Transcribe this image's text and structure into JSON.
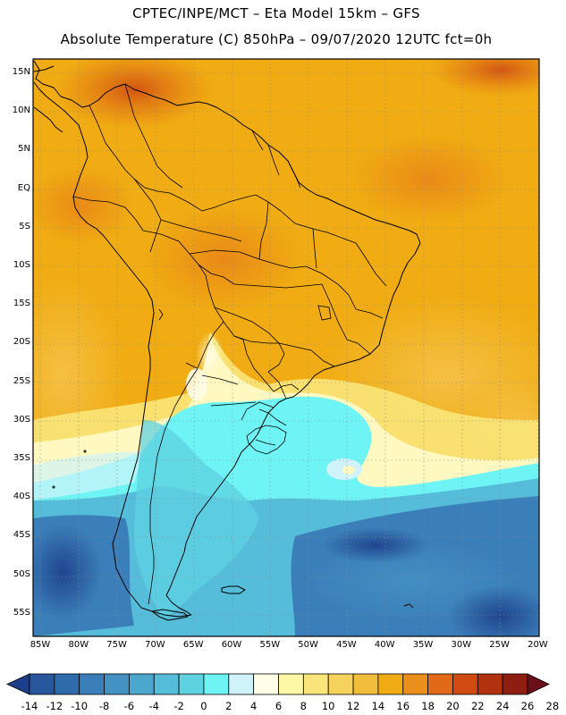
{
  "header": {
    "line1": "CPTEC/INPE/MCT –  Eta Model 15km – GFS",
    "line2": "Absolute Temperature (C) 850hPa – 09/07/2020 12UTC fct=0h"
  },
  "map": {
    "lat_labels": [
      "15N",
      "10N",
      "5N",
      "EQ",
      "5S",
      "10S",
      "15S",
      "20S",
      "25S",
      "30S",
      "35S",
      "40S",
      "45S",
      "50S",
      "55S"
    ],
    "lon_labels": [
      "85W",
      "80W",
      "75W",
      "70W",
      "65W",
      "60W",
      "55W",
      "50W",
      "45W",
      "40W",
      "35W",
      "30W",
      "25W",
      "20W"
    ]
  },
  "colorbar": {
    "labels": [
      "-14",
      "-12",
      "-10",
      "-8",
      "-6",
      "-4",
      "-2",
      "0",
      "2",
      "4",
      "6",
      "8",
      "10",
      "12",
      "14",
      "16",
      "18",
      "20",
      "22",
      "24",
      "26",
      "28"
    ],
    "colors": [
      "#1d3f8a",
      "#28579d",
      "#2f6aab",
      "#3b7fba",
      "#4491c3",
      "#4ca7cf",
      "#55bcd9",
      "#5fd2e2",
      "#6ef4f4",
      "#cff3f8",
      "#fffce8",
      "#fdf8a6",
      "#f9e57a",
      "#f5d25c",
      "#f1be3c",
      "#f0ac12",
      "#eb8f1c",
      "#e16a18",
      "#cf4b11",
      "#b2310f",
      "#8e1d12",
      "#6b0f18"
    ]
  }
}
